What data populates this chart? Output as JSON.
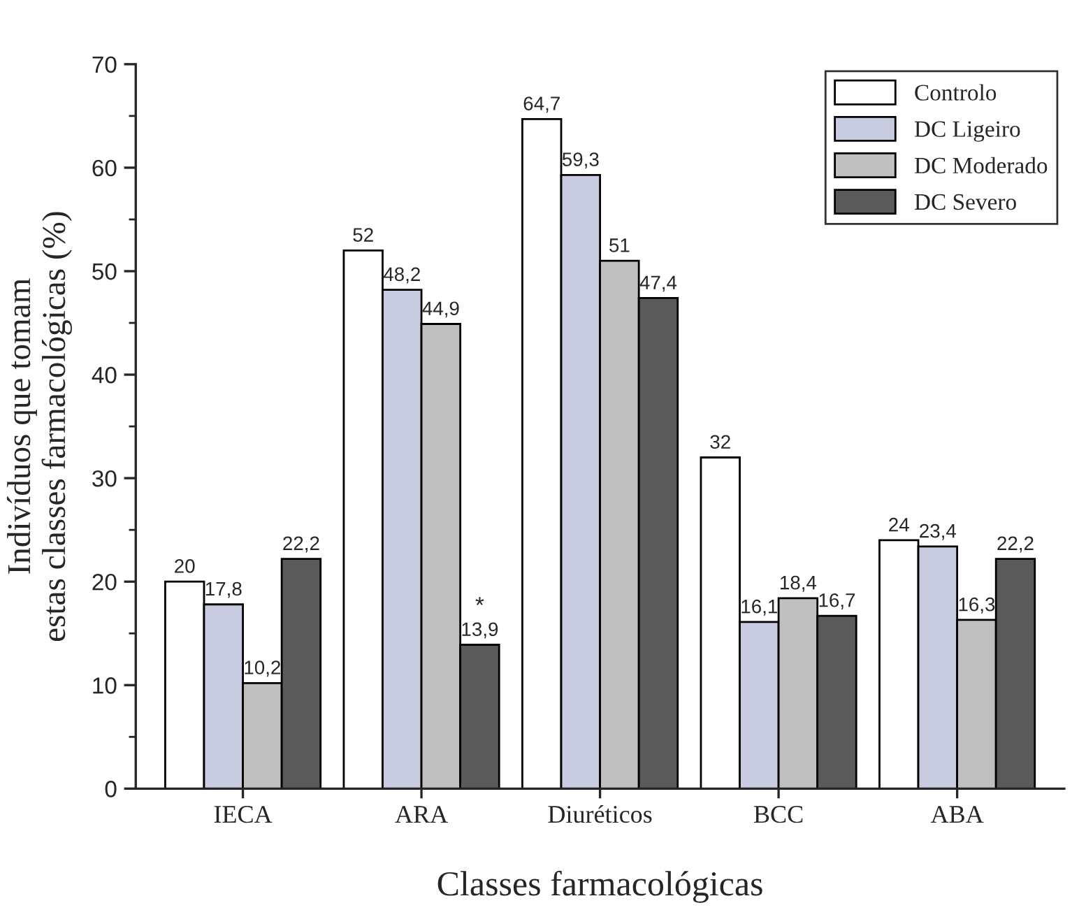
{
  "chart_data": {
    "type": "bar",
    "xlabel": "Classes farmacológicas",
    "ylabel": "Indivíduos que tomam\nestas classes farmacológicas (%)",
    "categories": [
      "IECA",
      "ARA",
      "Diuréticos",
      "BCC",
      "ABA"
    ],
    "series": [
      {
        "name": "Controlo",
        "color": "#ffffff",
        "values": [
          20,
          52,
          64.7,
          32,
          24
        ],
        "value_labels": [
          "20",
          "52",
          "64,7",
          "32",
          "24"
        ]
      },
      {
        "name": "DC Ligeiro",
        "color": "#c9cbe0",
        "values": [
          17.8,
          48.2,
          59.3,
          16.1,
          23.4
        ],
        "value_labels": [
          "17,8",
          "48,2",
          "59,3",
          "16,1",
          "23,4"
        ]
      },
      {
        "name": "DC Moderado",
        "color": "#c0c0c0",
        "values": [
          10.2,
          44.9,
          51,
          18.4,
          16.3
        ],
        "value_labels": [
          "10,2",
          "44,9",
          "51",
          "18,4",
          "16,3"
        ]
      },
      {
        "name": "DC Severo",
        "color": "#5a5a5a",
        "values": [
          22.2,
          13.9,
          47.4,
          16.7,
          22.2
        ],
        "value_labels": [
          "22,2",
          "13,9",
          "47,4",
          "16,7",
          "22,2"
        ]
      }
    ],
    "annotations": [
      {
        "text": "*",
        "x": "ARA",
        "y": 16.5
      }
    ],
    "ylim": [
      0,
      70
    ],
    "yticks": [
      0,
      10,
      20,
      30,
      40,
      50,
      60,
      70
    ],
    "legend": "top right",
    "grid": false
  }
}
